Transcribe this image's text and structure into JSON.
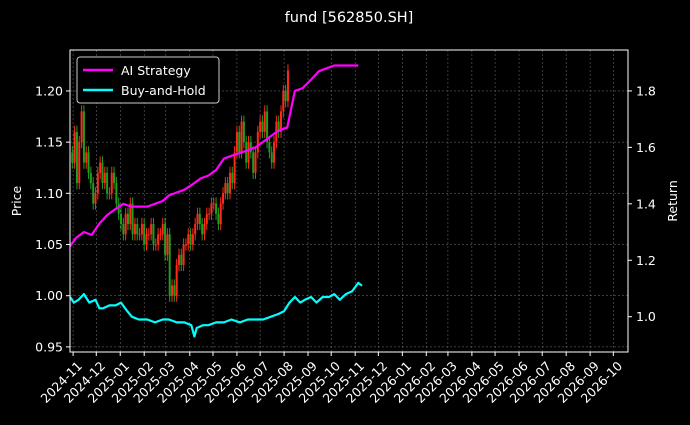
{
  "chart_data": {
    "type": "line",
    "title": "fund [562850.SH]",
    "xlabel": "",
    "ylabel_left": "Price",
    "ylabel_right": "Return",
    "x_ticks": [
      "2024-11",
      "2024-12",
      "2025-01",
      "2025-02",
      "2025-03",
      "2025-04",
      "2025-05",
      "2025-06",
      "2025-07",
      "2025-08",
      "2025-09",
      "2025-10",
      "2025-11",
      "2025-12",
      "2026-01",
      "2026-02",
      "2026-03",
      "2026-04",
      "2026-05",
      "2026-06",
      "2026-07",
      "2026-08",
      "2026-09",
      "2026-10"
    ],
    "xlim": [
      "2024-10-28",
      "2026-10-20"
    ],
    "ylim_left": [
      0.945,
      1.24
    ],
    "ylim_right": [
      0.875,
      1.945
    ],
    "left_ticks": [
      "0.95",
      "1.00",
      "1.05",
      "1.10",
      "1.15",
      "1.20"
    ],
    "right_ticks": [
      "1.0",
      "1.2",
      "1.4",
      "1.6",
      "1.8"
    ],
    "grid": true,
    "legend_position": "top-left",
    "colors": {
      "ai": "#ff00ff",
      "bh": "#00ffff",
      "up": "#ff2a1a",
      "down": "#1f9e1f",
      "grid": "#777777",
      "axes": "#ffffff"
    },
    "series": [
      {
        "name": "AI Strategy",
        "axis": "right",
        "x": [
          "2024-10-28",
          "2024-11-05",
          "2024-11-15",
          "2024-11-25",
          "2024-12-05",
          "2024-12-15",
          "2024-12-25",
          "2025-01-05",
          "2025-01-15",
          "2025-01-25",
          "2025-02-05",
          "2025-02-15",
          "2025-02-25",
          "2025-03-05",
          "2025-03-15",
          "2025-03-25",
          "2025-04-05",
          "2025-04-15",
          "2025-04-25",
          "2025-05-05",
          "2025-05-15",
          "2025-05-25",
          "2025-06-05",
          "2025-06-15",
          "2025-06-25",
          "2025-07-05",
          "2025-07-15",
          "2025-07-25",
          "2025-08-05",
          "2025-08-15",
          "2025-08-25",
          "2025-09-05",
          "2025-09-15",
          "2025-09-25",
          "2025-10-05",
          "2025-10-15",
          "2025-10-25",
          "2025-11-05"
        ],
        "values": [
          1.25,
          1.28,
          1.3,
          1.29,
          1.33,
          1.36,
          1.38,
          1.4,
          1.39,
          1.39,
          1.39,
          1.4,
          1.41,
          1.43,
          1.44,
          1.45,
          1.47,
          1.49,
          1.5,
          1.52,
          1.56,
          1.57,
          1.58,
          1.59,
          1.6,
          1.62,
          1.64,
          1.66,
          1.67,
          1.8,
          1.81,
          1.84,
          1.87,
          1.88,
          1.89,
          1.89,
          1.89,
          1.89
        ]
      },
      {
        "name": "Buy-and-Hold",
        "axis": "right",
        "x": [
          "2024-10-28",
          "2024-11-02",
          "2024-11-08",
          "2024-11-15",
          "2024-11-22",
          "2024-11-30",
          "2024-12-05",
          "2024-12-10",
          "2024-12-18",
          "2024-12-26",
          "2025-01-02",
          "2025-01-10",
          "2025-01-16",
          "2025-01-25",
          "2025-02-05",
          "2025-02-15",
          "2025-02-25",
          "2025-03-05",
          "2025-03-15",
          "2025-03-25",
          "2025-04-03",
          "2025-04-07",
          "2025-04-10",
          "2025-04-18",
          "2025-04-25",
          "2025-05-05",
          "2025-05-15",
          "2025-05-25",
          "2025-06-05",
          "2025-06-15",
          "2025-06-25",
          "2025-07-05",
          "2025-07-15",
          "2025-07-25",
          "2025-08-01",
          "2025-08-08",
          "2025-08-15",
          "2025-08-22",
          "2025-08-28",
          "2025-09-05",
          "2025-09-12",
          "2025-09-20",
          "2025-09-28",
          "2025-10-05",
          "2025-10-12",
          "2025-10-20",
          "2025-10-28",
          "2025-11-05",
          "2025-11-10"
        ],
        "values": [
          1.07,
          1.05,
          1.06,
          1.08,
          1.05,
          1.06,
          1.03,
          1.03,
          1.04,
          1.04,
          1.05,
          1.02,
          1.0,
          0.99,
          0.99,
          0.98,
          0.99,
          0.99,
          0.98,
          0.98,
          0.97,
          0.93,
          0.96,
          0.97,
          0.97,
          0.98,
          0.98,
          0.99,
          0.98,
          0.99,
          0.99,
          0.99,
          1.0,
          1.01,
          1.02,
          1.05,
          1.07,
          1.05,
          1.06,
          1.07,
          1.05,
          1.07,
          1.07,
          1.08,
          1.06,
          1.08,
          1.09,
          1.12,
          1.11
        ]
      }
    ],
    "price": {
      "axis": "left",
      "start": "2024-10-28",
      "step_days": 3,
      "close": [
        1.14,
        1.13,
        1.16,
        1.11,
        1.15,
        1.18,
        1.13,
        1.14,
        1.12,
        1.11,
        1.09,
        1.1,
        1.12,
        1.13,
        1.11,
        1.12,
        1.1,
        1.1,
        1.12,
        1.11,
        1.09,
        1.08,
        1.07,
        1.06,
        1.08,
        1.07,
        1.09,
        1.06,
        1.07,
        1.06,
        1.06,
        1.07,
        1.05,
        1.06,
        1.06,
        1.07,
        1.05,
        1.05,
        1.06,
        1.06,
        1.07,
        1.04,
        1.06,
        1.0,
        1.01,
        1.0,
        1.03,
        1.04,
        1.03,
        1.05,
        1.05,
        1.06,
        1.05,
        1.06,
        1.07,
        1.08,
        1.07,
        1.06,
        1.07,
        1.08,
        1.08,
        1.09,
        1.09,
        1.08,
        1.07,
        1.09,
        1.1,
        1.11,
        1.1,
        1.12,
        1.11,
        1.14,
        1.16,
        1.14,
        1.17,
        1.15,
        1.13,
        1.15,
        1.14,
        1.12,
        1.14,
        1.16,
        1.17,
        1.16,
        1.18,
        1.15,
        1.14,
        1.13,
        1.15,
        1.17,
        1.16,
        1.18,
        1.2,
        1.19,
        1.22
      ]
    }
  }
}
